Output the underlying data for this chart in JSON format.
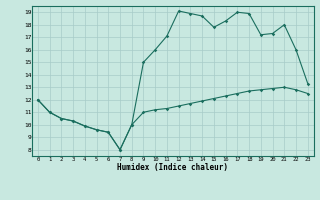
{
  "xlabel": "Humidex (Indice chaleur)",
  "line_color": "#1a6e5e",
  "bg_color": "#c8e8e0",
  "grid_color": "#a8ccc8",
  "xlim": [
    -0.5,
    23.5
  ],
  "ylim": [
    7.5,
    19.5
  ],
  "xticks": [
    0,
    1,
    2,
    3,
    4,
    5,
    6,
    7,
    8,
    9,
    10,
    11,
    12,
    13,
    14,
    15,
    16,
    17,
    18,
    19,
    20,
    21,
    22,
    23
  ],
  "yticks": [
    8,
    9,
    10,
    11,
    12,
    13,
    14,
    15,
    16,
    17,
    18,
    19
  ],
  "line1_x": [
    0,
    1,
    2,
    3,
    4,
    5,
    6,
    7,
    8,
    9,
    10,
    11,
    12,
    13,
    14,
    15,
    16,
    17,
    18,
    19,
    20,
    21,
    22,
    23
  ],
  "line1_y": [
    12,
    11,
    10.5,
    10.3,
    9.9,
    9.6,
    9.4,
    8.0,
    10.0,
    11.0,
    11.2,
    11.3,
    11.5,
    11.7,
    11.9,
    12.1,
    12.3,
    12.5,
    12.7,
    12.8,
    12.9,
    13.0,
    12.8,
    12.5
  ],
  "line2_x": [
    0,
    1,
    2,
    3,
    4,
    5,
    6,
    7,
    8,
    9,
    10,
    11,
    12,
    13,
    14,
    15,
    16,
    17,
    18,
    19,
    20,
    21,
    22,
    23
  ],
  "line2_y": [
    12,
    11,
    10.5,
    10.3,
    9.9,
    9.6,
    9.4,
    8.0,
    10.0,
    15.0,
    16.0,
    17.1,
    19.1,
    18.9,
    18.7,
    17.8,
    18.3,
    19.0,
    18.9,
    17.2,
    17.3,
    18.0,
    16.0,
    13.3
  ]
}
